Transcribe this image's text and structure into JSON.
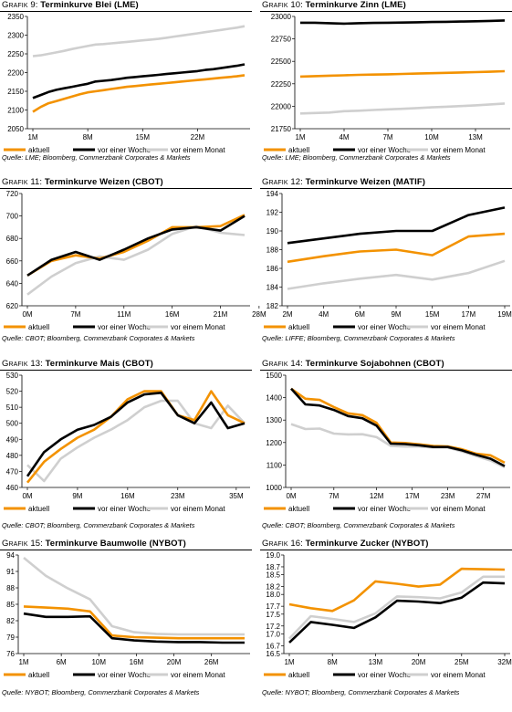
{
  "colors": {
    "aktuell": "#f39200",
    "woche": "#000000",
    "monat": "#cfcfcf",
    "rule": "#000000"
  },
  "legend_labels": [
    "aktuell",
    "vor einer Woche",
    "vor einem Monat"
  ],
  "charts": [
    {
      "title_prefix": "Grafik 9:",
      "title_main": "Terminkurve Blei (LME)",
      "source": "Quelle: LME; Bloomberg, Commerzbank Corporates & Markets",
      "chart_data": {
        "type": "line",
        "ylim": [
          2050,
          2350
        ],
        "yticks": [
          2050,
          2100,
          2150,
          2200,
          2250,
          2300,
          2350
        ],
        "xcount": 28,
        "xticks": [
          [
            0,
            "1M"
          ],
          [
            7,
            "8M"
          ],
          [
            14,
            "15M"
          ],
          [
            21,
            "22M"
          ]
        ],
        "series": [
          {
            "name": "aktuell",
            "values": [
              2095,
              2108,
              2118,
              2124,
              2130,
              2136,
              2142,
              2147,
              2150,
              2153,
              2156,
              2159,
              2162,
              2164,
              2166,
              2168,
              2170,
              2172,
              2174,
              2176,
              2178,
              2180,
              2182,
              2184,
              2186,
              2188,
              2190,
              2193
            ]
          },
          {
            "name": "vor einer Woche",
            "values": [
              2132,
              2140,
              2148,
              2154,
              2158,
              2162,
              2166,
              2170,
              2176,
              2178,
              2180,
              2183,
              2186,
              2188,
              2190,
              2192,
              2194,
              2196,
              2198,
              2200,
              2202,
              2204,
              2207,
              2209,
              2212,
              2215,
              2218,
              2222
            ]
          },
          {
            "name": "vor einem Monat",
            "values": [
              2244,
              2246,
              2250,
              2254,
              2258,
              2263,
              2267,
              2271,
              2275,
              2276,
              2278,
              2280,
              2282,
              2284,
              2286,
              2288,
              2290,
              2293,
              2296,
              2299,
              2302,
              2305,
              2308,
              2311,
              2314,
              2317,
              2320,
              2324
            ]
          }
        ]
      }
    },
    {
      "title_prefix": "Grafik 10:",
      "title_main": "Terminkurve Zinn (LME)",
      "source": "Quelle: LME; Bloomberg, Commerzbank Corporates & Markets",
      "chart_data": {
        "type": "line",
        "ylim": [
          21750,
          23000
        ],
        "yticks": [
          21750,
          22000,
          22250,
          22500,
          22750,
          23000
        ],
        "xcount": 15,
        "xticks": [
          [
            0,
            "1M"
          ],
          [
            3,
            "4M"
          ],
          [
            6,
            "7M"
          ],
          [
            9,
            "10M"
          ],
          [
            12,
            "13M"
          ]
        ],
        "series": [
          {
            "name": "aktuell",
            "values": [
              22330,
              22335,
              22340,
              22345,
              22350,
              22353,
              22356,
              22360,
              22364,
              22368,
              22372,
              22376,
              22380,
              22384,
              22390
            ]
          },
          {
            "name": "vor einer Woche",
            "values": [
              22930,
              22930,
              22925,
              22920,
              22925,
              22928,
              22930,
              22932,
              22935,
              22938,
              22940,
              22943,
              22946,
              22950,
              22955
            ]
          },
          {
            "name": "vor einem Monat",
            "values": [
              21920,
              21925,
              21930,
              21945,
              21950,
              21958,
              21965,
              21972,
              21980,
              21988,
              21995,
              22002,
              22010,
              22020,
              22030
            ]
          }
        ]
      }
    },
    {
      "title_prefix": "Grafik 11:",
      "title_main": "Terminkurve Weizen (CBOT)",
      "source": "Quelle: CBOT; Bloomberg, Commerzbank Corporates & Markets",
      "chart_data": {
        "type": "line",
        "ylim": [
          620,
          720
        ],
        "yticks": [
          620,
          640,
          660,
          680,
          700,
          720
        ],
        "xcount": 10,
        "xticks": [
          [
            0,
            "0M"
          ],
          [
            2,
            "7M"
          ],
          [
            4,
            "11M"
          ],
          [
            6,
            "16M"
          ],
          [
            8,
            "21M"
          ],
          [
            9.6,
            "28M"
          ]
        ],
        "series": [
          {
            "name": "aktuell",
            "values": [
              647,
              660,
              665,
              662,
              668,
              678,
              690,
              690,
              691,
              701
            ]
          },
          {
            "name": "vor einer Woche",
            "values": [
              647,
              661,
              668,
              661,
              670,
              680,
              688,
              690,
              687,
              700
            ]
          },
          {
            "name": "vor einem Monat",
            "values": [
              630,
              646,
              658,
              664,
              661,
              670,
              684,
              691,
              685,
              683
            ]
          }
        ]
      }
    },
    {
      "title_prefix": "Grafik 12:",
      "title_main": "Terminkurve Weizen (MATIF)",
      "source": "Quelle: LIFFE; Bloomberg, Commerzbank Corporates & Markets",
      "chart_data": {
        "type": "line",
        "ylim": [
          182,
          194
        ],
        "yticks": [
          182,
          184,
          186,
          188,
          190,
          192,
          194
        ],
        "xcount": 7,
        "xticks": [
          [
            0,
            "2M"
          ],
          [
            1,
            "4M"
          ],
          [
            2,
            "6M"
          ],
          [
            3,
            "9M"
          ],
          [
            4,
            "15M"
          ],
          [
            5,
            "17M"
          ],
          [
            6,
            "19M"
          ]
        ],
        "series": [
          {
            "name": "aktuell",
            "values": [
              186.7,
              187.3,
              187.8,
              188.0,
              187.4,
              189.4,
              189.7
            ]
          },
          {
            "name": "vor einer Woche",
            "values": [
              188.7,
              189.2,
              189.7,
              190.0,
              190.0,
              191.7,
              192.5
            ]
          },
          {
            "name": "vor einem Monat",
            "values": [
              183.8,
              184.4,
              184.9,
              185.3,
              184.8,
              185.5,
              186.8
            ]
          }
        ]
      }
    },
    {
      "title_prefix": "Grafik 13:",
      "title_main": "Terminkurve Mais (CBOT)",
      "source": "Quelle: CBOT; Bloomberg, Commerzbank Corporates & Markets",
      "chart_data": {
        "type": "line",
        "ylim": [
          460,
          530
        ],
        "yticks": [
          460,
          470,
          480,
          490,
          500,
          510,
          520,
          530
        ],
        "xcount": 14,
        "xticks": [
          [
            0,
            "0M"
          ],
          [
            3,
            "9M"
          ],
          [
            6,
            "16M"
          ],
          [
            9,
            "23M"
          ],
          [
            12.5,
            "35M"
          ]
        ],
        "series": [
          {
            "name": "aktuell",
            "values": [
              463,
              476,
              484,
              491,
              496,
              504,
              515,
              520,
              520,
              505,
              502,
              520,
              505,
              500
            ]
          },
          {
            "name": "vor einer Woche",
            "values": [
              467,
              482,
              490,
              496,
              499,
              504,
              513,
              518,
              519,
              505,
              500,
              513,
              497,
              500
            ]
          },
          {
            "name": "vor einem Monat",
            "values": [
              474,
              464,
              478,
              485,
              491,
              496,
              502,
              510,
              514,
              514,
              500,
              497,
              511,
              500
            ]
          }
        ]
      }
    },
    {
      "title_prefix": "Grafik 14:",
      "title_main": "Terminkurve Sojabohnen (CBOT)",
      "source": "Quelle: CBOT; Bloomberg, Commerzbank Corporates & Markets",
      "chart_data": {
        "type": "line",
        "ylim": [
          1000,
          1500
        ],
        "yticks": [
          1000,
          1100,
          1200,
          1300,
          1400,
          1500
        ],
        "xcount": 16,
        "xticks": [
          [
            0,
            "0M"
          ],
          [
            3,
            "7M"
          ],
          [
            6,
            "12M"
          ],
          [
            8.5,
            "17M"
          ],
          [
            11,
            "23M"
          ],
          [
            13.5,
            "27M"
          ]
        ],
        "series": [
          {
            "name": "aktuell",
            "values": [
              1440,
              1395,
              1390,
              1358,
              1330,
              1322,
              1288,
              1200,
              1198,
              1192,
              1185,
              1183,
              1170,
              1150,
              1143,
              1110
            ]
          },
          {
            "name": "vor einer Woche",
            "values": [
              1440,
              1370,
              1365,
              1345,
              1318,
              1308,
              1275,
              1195,
              1193,
              1188,
              1180,
              1180,
              1165,
              1145,
              1128,
              1095
            ]
          },
          {
            "name": "vor einem Monat",
            "values": [
              1282,
              1260,
              1262,
              1240,
              1236,
              1237,
              1224,
              1185,
              1182,
              1182,
              1178,
              1178,
              1160,
              1140,
              1120,
              1090
            ]
          }
        ]
      }
    },
    {
      "title_prefix": "Grafik 15:",
      "title_main": "Terminkurve Baumwolle (NYBOT)",
      "source": "Quelle: NYBOT; Bloomberg, Commerzbank Corporates & Markets",
      "chart_data": {
        "type": "line",
        "ylim": [
          76,
          94
        ],
        "yticks": [
          76,
          79,
          82,
          85,
          88,
          91,
          94
        ],
        "xcount": 11,
        "xticks": [
          [
            0,
            "1M"
          ],
          [
            1.7,
            "6M"
          ],
          [
            3.4,
            "10M"
          ],
          [
            5.1,
            "16M"
          ],
          [
            6.8,
            "20M"
          ],
          [
            8.5,
            "26M"
          ]
        ],
        "series": [
          {
            "name": "aktuell",
            "values": [
              84.6,
              84.4,
              84.2,
              83.7,
              79.3,
              79.0,
              78.9,
              78.8,
              78.8,
              78.8,
              78.8
            ]
          },
          {
            "name": "vor einer Woche",
            "values": [
              83.3,
              82.7,
              82.7,
              82.8,
              78.8,
              78.4,
              78.2,
              78.1,
              78.1,
              78.0,
              78.0
            ]
          },
          {
            "name": "vor einem Monat",
            "values": [
              93.5,
              90.2,
              87.9,
              85.9,
              81.0,
              79.9,
              79.6,
              79.5,
              79.5,
              79.5,
              79.5
            ]
          }
        ]
      }
    },
    {
      "title_prefix": "Grafik 16:",
      "title_main": "Terminkurve Zucker (NYBOT)",
      "source": "Quelle: NYBOT; Bloomberg, Commerzbank Corporates & Markets",
      "chart_data": {
        "type": "line",
        "ylim": [
          16.5,
          19.0
        ],
        "yticks": [
          16.5,
          16.7,
          17.0,
          17.2,
          17.5,
          17.7,
          18.0,
          18.2,
          18.5,
          18.7,
          19.0
        ],
        "ytick_labels": [
          "16.5",
          "16.7",
          "17.0",
          "17.2",
          "17.5",
          "17.7",
          "18.0",
          "18.2",
          "18.5",
          "18.7",
          "19.0"
        ],
        "xcount": 11,
        "xticks": [
          [
            0,
            "1M"
          ],
          [
            2,
            "8M"
          ],
          [
            4,
            "13M"
          ],
          [
            6,
            "20M"
          ],
          [
            8,
            "25M"
          ],
          [
            10,
            "32M"
          ]
        ],
        "series": [
          {
            "name": "aktuell",
            "values": [
              17.75,
              17.65,
              17.58,
              17.85,
              18.33,
              18.27,
              18.2,
              18.25,
              18.65,
              18.64,
              18.63
            ]
          },
          {
            "name": "vor einer Woche",
            "values": [
              16.78,
              17.3,
              17.23,
              17.15,
              17.42,
              17.84,
              17.82,
              17.78,
              17.92,
              18.3,
              18.28
            ]
          },
          {
            "name": "vor einem Monat",
            "values": [
              16.88,
              17.45,
              17.38,
              17.3,
              17.52,
              17.95,
              17.93,
              17.9,
              18.05,
              18.45,
              18.45
            ]
          }
        ]
      }
    }
  ]
}
